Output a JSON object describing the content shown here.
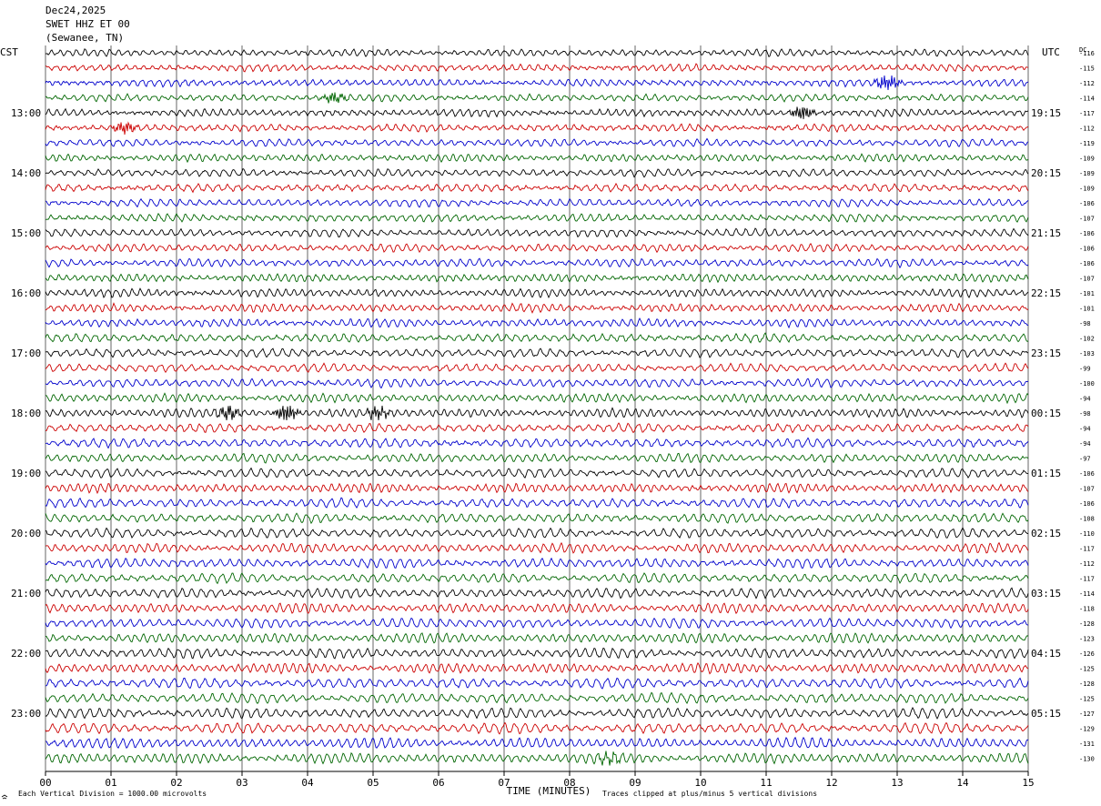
{
  "header": {
    "date": "Dec24,2025",
    "station": "SWET HHZ ET 00",
    "location": "(Sewanee, TN)"
  },
  "left_zone": "CST",
  "right_zone": "UTC",
  "dc_header": "DC",
  "footer": {
    "scale_note": "Each Vertical Division = 1000.00 microvolts",
    "x_title": "TIME (MINUTES)",
    "clip_note": "Traces clipped at plus/minus 5 vertical divisions"
  },
  "colors": {
    "cycle": [
      "#000000",
      "#cc0000",
      "#0000cc",
      "#006600"
    ],
    "grid": "#000000"
  },
  "chart_data": {
    "type": "line",
    "title": "SWET HHZ ET 00",
    "xlabel": "TIME (MINUTES)",
    "xlim": [
      0,
      15
    ],
    "x_ticks": [
      "00",
      "01",
      "02",
      "03",
      "04",
      "05",
      "06",
      "07",
      "08",
      "09",
      "10",
      "11",
      "12",
      "13",
      "14",
      "15"
    ],
    "rows_per_hour": 4,
    "left_hour_labels": [
      "13:00",
      "14:00",
      "15:00",
      "16:00",
      "17:00",
      "18:00",
      "19:00",
      "20:00",
      "21:00",
      "22:00",
      "23:00"
    ],
    "right_hour_labels": [
      "19:15",
      "20:15",
      "21:15",
      "22:15",
      "23:15",
      "00:15",
      "01:15",
      "02:15",
      "03:15",
      "04:15",
      "05:15"
    ],
    "trace_dc_offsets": [
      "-116",
      "-115",
      "-112",
      "-114",
      "-117",
      "-112",
      "-119",
      "-109",
      "-109",
      "-109",
      "-106",
      "-107",
      "-106",
      "-106",
      "-106",
      "-107",
      "-101",
      "-101",
      "-98",
      "-102",
      "-103",
      "-99",
      "-100",
      "-94",
      "-98",
      "-94",
      "-94",
      "-97",
      "-106",
      "-107",
      "-106",
      "-108",
      "-110",
      "-117",
      "-112",
      "-117",
      "-114",
      "-118",
      "-128",
      "-123",
      "-126",
      "-125",
      "-128",
      "-125",
      "-127",
      "-129",
      "-131",
      "-130"
    ],
    "events": [
      {
        "trace": 2,
        "minute": 12.85,
        "amplitude": 2.2
      },
      {
        "trace": 3,
        "minute": 4.4,
        "amplitude": 1.4
      },
      {
        "trace": 4,
        "minute": 11.55,
        "amplitude": 2.0
      },
      {
        "trace": 5,
        "minute": 1.2,
        "amplitude": 1.6
      },
      {
        "trace": 24,
        "minute": 2.8,
        "amplitude": 1.8
      },
      {
        "trace": 24,
        "minute": 3.68,
        "amplitude": 2.4
      },
      {
        "trace": 24,
        "minute": 5.08,
        "amplitude": 1.8
      },
      {
        "trace": 47,
        "minute": 8.6,
        "amplitude": 1.2
      }
    ]
  }
}
